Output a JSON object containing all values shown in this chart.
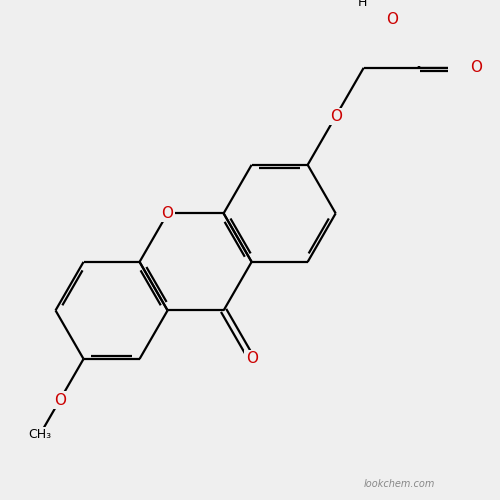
{
  "background_color": "#efefef",
  "bond_color": "#000000",
  "red_color": "#cc0000",
  "watermark": "lookchem.com",
  "bond_lw": 1.6,
  "dbl_off": 0.06,
  "font_size": 11,
  "font_size_h": 9,
  "xlim": [
    -1.0,
    6.5
  ],
  "ylim": [
    -3.2,
    4.5
  ],
  "BL": 1.0
}
